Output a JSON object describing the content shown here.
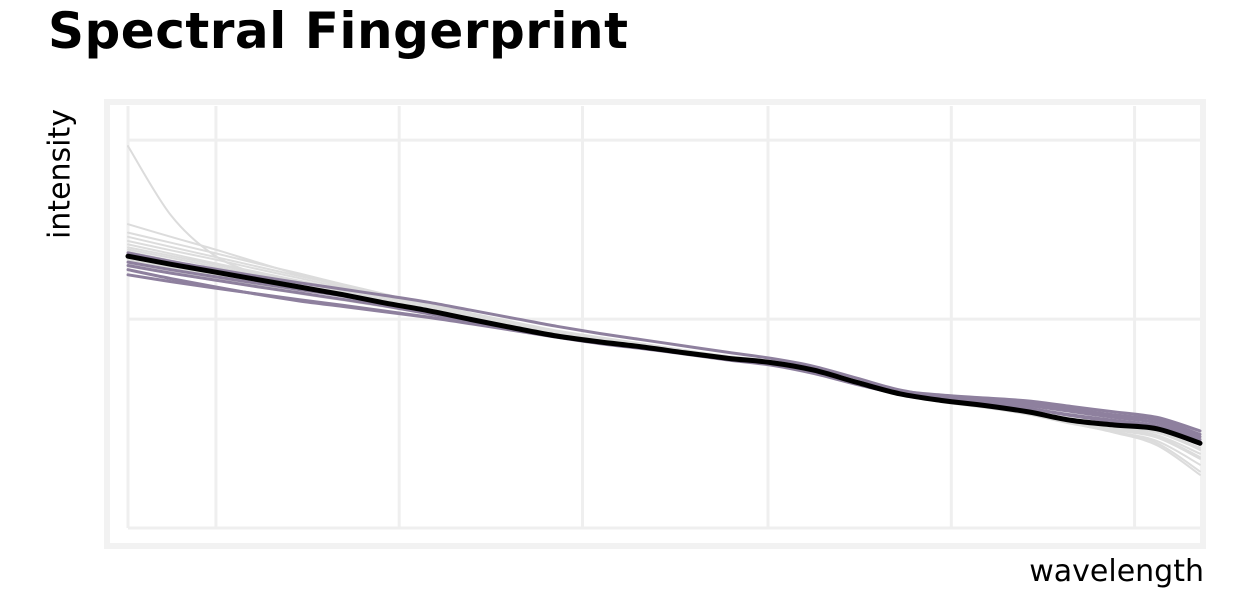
{
  "chart_data": {
    "type": "line",
    "title": "Spectral Fingerprint",
    "xlabel": "wavelength",
    "ylabel": "intensity",
    "xlim": [
      0,
      1
    ],
    "ylim": [
      0,
      1
    ],
    "x_gridlines": [
      0.082,
      0.253,
      0.424,
      0.597,
      0.768,
      0.939
    ],
    "y_gridlines": [
      0.495,
      0.919
    ],
    "x_tick_labels": [],
    "y_tick_labels": [],
    "grid": true,
    "legend": "none",
    "colors": {
      "background_frame": "#f2f2f2",
      "gridline": "#efefef",
      "individual": "#dcdcdc",
      "highlight": "#8e809e",
      "mean": "#000000"
    },
    "x": [
      0,
      0.04,
      0.08,
      0.12,
      0.16,
      0.2,
      0.24,
      0.28,
      0.32,
      0.36,
      0.4,
      0.44,
      0.48,
      0.52,
      0.56,
      0.6,
      0.64,
      0.68,
      0.72,
      0.76,
      0.8,
      0.84,
      0.88,
      0.92,
      0.96,
      1
    ],
    "series": [
      {
        "role": "mean",
        "values": [
          0.644,
          0.625,
          0.607,
          0.589,
          0.571,
          0.553,
          0.533,
          0.515,
          0.494,
          0.474,
          0.455,
          0.441,
          0.429,
          0.415,
          0.402,
          0.392,
          0.374,
          0.345,
          0.318,
          0.302,
          0.29,
          0.275,
          0.255,
          0.244,
          0.235,
          0.201
        ]
      },
      {
        "role": "highlight",
        "values": [
          0.63,
          0.612,
          0.596,
          0.58,
          0.565,
          0.55,
          0.531,
          0.513,
          0.492,
          0.474,
          0.456,
          0.441,
          0.429,
          0.415,
          0.402,
          0.39,
          0.371,
          0.347,
          0.325,
          0.315,
          0.308,
          0.301,
          0.288,
          0.275,
          0.262,
          0.23
        ]
      },
      {
        "role": "highlight",
        "values": [
          0.622,
          0.604,
          0.588,
          0.572,
          0.557,
          0.542,
          0.526,
          0.508,
          0.489,
          0.472,
          0.455,
          0.44,
          0.428,
          0.414,
          0.4,
          0.388,
          0.369,
          0.344,
          0.322,
          0.311,
          0.304,
          0.296,
          0.282,
          0.268,
          0.256,
          0.222
        ]
      },
      {
        "role": "highlight",
        "values": [
          0.612,
          0.591,
          0.572,
          0.554,
          0.538,
          0.525,
          0.512,
          0.499,
          0.484,
          0.468,
          0.452,
          0.437,
          0.425,
          0.412,
          0.398,
          0.386,
          0.366,
          0.34,
          0.318,
          0.306,
          0.298,
          0.29,
          0.276,
          0.262,
          0.249,
          0.216
        ]
      },
      {
        "role": "highlight",
        "values": [
          0.652,
          0.632,
          0.614,
          0.597,
          0.581,
          0.566,
          0.551,
          0.535,
          0.516,
          0.497,
          0.478,
          0.461,
          0.446,
          0.431,
          0.416,
          0.402,
          0.383,
          0.355,
          0.327,
          0.311,
          0.299,
          0.284,
          0.266,
          0.252,
          0.24,
          0.205
        ]
      },
      {
        "role": "highlight",
        "values": [
          0.6,
          0.584,
          0.569,
          0.555,
          0.541,
          0.528,
          0.514,
          0.5,
          0.485,
          0.47,
          0.455,
          0.44,
          0.428,
          0.415,
          0.401,
          0.389,
          0.37,
          0.343,
          0.318,
          0.304,
          0.294,
          0.283,
          0.268,
          0.255,
          0.242,
          0.21
        ]
      },
      {
        "role": "individual",
        "values": [
          0.905,
          0.741,
          0.647,
          0.602,
          0.571,
          0.552,
          0.535,
          0.516,
          0.495,
          0.474,
          0.455,
          0.441,
          0.429,
          0.415,
          0.401,
          0.391,
          0.372,
          0.343,
          0.316,
          0.3,
          0.287,
          0.271,
          0.249,
          0.229,
          0.201,
          0.134
        ]
      },
      {
        "role": "individual",
        "values": [
          0.72,
          0.69,
          0.661,
          0.63,
          0.6,
          0.573,
          0.549,
          0.526,
          0.503,
          0.481,
          0.461,
          0.446,
          0.433,
          0.418,
          0.404,
          0.393,
          0.375,
          0.346,
          0.318,
          0.301,
          0.288,
          0.272,
          0.251,
          0.236,
          0.22,
          0.176
        ]
      },
      {
        "role": "individual",
        "values": [
          0.7,
          0.676,
          0.652,
          0.627,
          0.603,
          0.578,
          0.554,
          0.53,
          0.507,
          0.485,
          0.464,
          0.449,
          0.436,
          0.421,
          0.407,
          0.396,
          0.377,
          0.348,
          0.32,
          0.303,
          0.289,
          0.273,
          0.25,
          0.232,
          0.214,
          0.164
        ]
      },
      {
        "role": "individual",
        "values": [
          0.68,
          0.658,
          0.637,
          0.614,
          0.592,
          0.57,
          0.548,
          0.526,
          0.503,
          0.482,
          0.462,
          0.447,
          0.434,
          0.419,
          0.405,
          0.394,
          0.375,
          0.346,
          0.319,
          0.302,
          0.288,
          0.272,
          0.252,
          0.239,
          0.226,
          0.186
        ]
      },
      {
        "role": "individual",
        "values": [
          0.665,
          0.645,
          0.625,
          0.604,
          0.583,
          0.562,
          0.541,
          0.521,
          0.499,
          0.479,
          0.459,
          0.444,
          0.432,
          0.418,
          0.404,
          0.393,
          0.375,
          0.346,
          0.319,
          0.303,
          0.291,
          0.277,
          0.259,
          0.246,
          0.235,
          0.197
        ]
      },
      {
        "role": "individual",
        "values": [
          0.66,
          0.64,
          0.62,
          0.6,
          0.58,
          0.56,
          0.54,
          0.519,
          0.496,
          0.476,
          0.457,
          0.442,
          0.43,
          0.416,
          0.402,
          0.392,
          0.373,
          0.344,
          0.317,
          0.3,
          0.286,
          0.27,
          0.248,
          0.226,
          0.196,
          0.126
        ]
      },
      {
        "role": "individual",
        "values": [
          0.635,
          0.617,
          0.6,
          0.582,
          0.565,
          0.548,
          0.53,
          0.512,
          0.492,
          0.472,
          0.454,
          0.44,
          0.428,
          0.414,
          0.4,
          0.39,
          0.372,
          0.343,
          0.316,
          0.299,
          0.287,
          0.271,
          0.249,
          0.234,
          0.217,
          0.168
        ]
      },
      {
        "role": "individual",
        "values": [
          0.62,
          0.603,
          0.587,
          0.571,
          0.555,
          0.54,
          0.524,
          0.508,
          0.49,
          0.471,
          0.453,
          0.439,
          0.427,
          0.413,
          0.399,
          0.389,
          0.371,
          0.342,
          0.315,
          0.299,
          0.286,
          0.271,
          0.251,
          0.238,
          0.226,
          0.19
        ]
      },
      {
        "role": "individual",
        "values": [
          0.645,
          0.624,
          0.604,
          0.585,
          0.567,
          0.55,
          0.532,
          0.514,
          0.493,
          0.473,
          0.454,
          0.44,
          0.428,
          0.414,
          0.4,
          0.39,
          0.372,
          0.343,
          0.316,
          0.3,
          0.288,
          0.273,
          0.253,
          0.242,
          0.232,
          0.2
        ]
      },
      {
        "role": "individual",
        "values": [
          0.672,
          0.65,
          0.628,
          0.607,
          0.586,
          0.566,
          0.546,
          0.526,
          0.505,
          0.484,
          0.464,
          0.448,
          0.433,
          0.418,
          0.403,
          0.391,
          0.373,
          0.345,
          0.318,
          0.302,
          0.29,
          0.275,
          0.256,
          0.244,
          0.233,
          0.198
        ]
      },
      {
        "role": "individual",
        "values": [
          0.628,
          0.61,
          0.592,
          0.575,
          0.558,
          0.542,
          0.525,
          0.507,
          0.488,
          0.47,
          0.452,
          0.438,
          0.426,
          0.412,
          0.398,
          0.388,
          0.37,
          0.342,
          0.315,
          0.298,
          0.285,
          0.269,
          0.247,
          0.228,
          0.206,
          0.15
        ]
      },
      {
        "role": "individual",
        "values": [
          0.69,
          0.666,
          0.643,
          0.62,
          0.597,
          0.575,
          0.553,
          0.531,
          0.509,
          0.488,
          0.468,
          0.452,
          0.437,
          0.421,
          0.406,
          0.394,
          0.376,
          0.347,
          0.319,
          0.302,
          0.289,
          0.274,
          0.254,
          0.241,
          0.228,
          0.19
        ]
      },
      {
        "role": "individual",
        "values": [
          0.64,
          0.622,
          0.604,
          0.586,
          0.568,
          0.551,
          0.533,
          0.514,
          0.494,
          0.474,
          0.456,
          0.442,
          0.43,
          0.416,
          0.402,
          0.392,
          0.374,
          0.345,
          0.318,
          0.302,
          0.29,
          0.276,
          0.258,
          0.247,
          0.238,
          0.206
        ]
      },
      {
        "role": "individual",
        "values": [
          0.655,
          0.634,
          0.614,
          0.594,
          0.575,
          0.556,
          0.537,
          0.518,
          0.497,
          0.477,
          0.458,
          0.443,
          0.431,
          0.417,
          0.403,
          0.392,
          0.374,
          0.345,
          0.318,
          0.301,
          0.289,
          0.274,
          0.255,
          0.243,
          0.23,
          0.185
        ]
      }
    ]
  }
}
